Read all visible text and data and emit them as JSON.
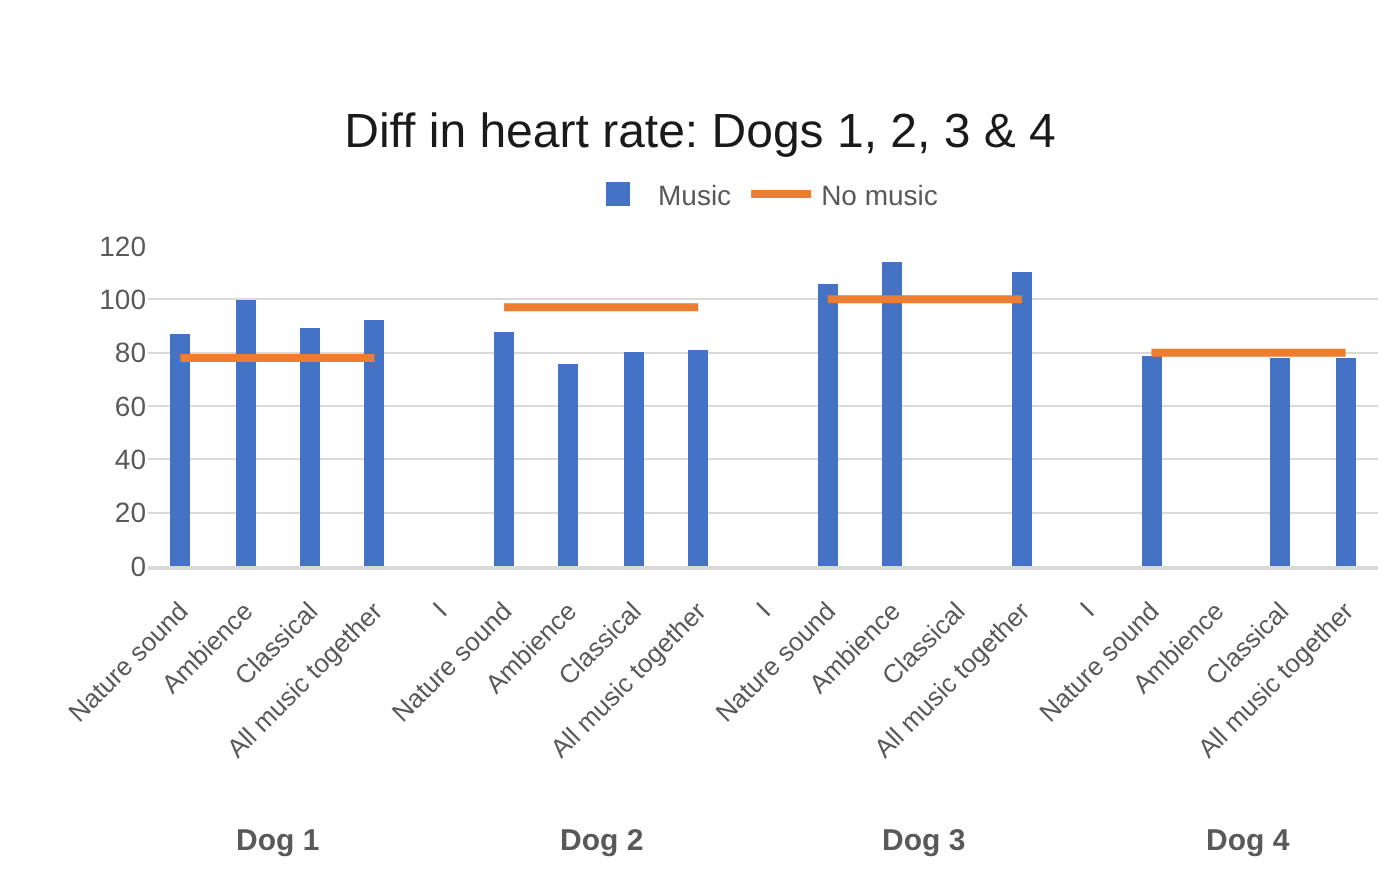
{
  "chart_data": {
    "type": "bar",
    "title": "Diff in heart rate: Dogs 1, 2, 3 & 4",
    "categories": [
      "Nature sound",
      "Ambience",
      "Classical",
      "All music together",
      "I",
      "Nature sound",
      "Ambience",
      "Classical",
      "All music together",
      "I",
      "Nature sound",
      "Ambience",
      "Classical",
      "All music together",
      "I",
      "Nature sound",
      "Ambience",
      "Classical",
      "All music together"
    ],
    "series": [
      {
        "name": "Music",
        "color": "#4472c4",
        "values": [
          87,
          100,
          89,
          92,
          null,
          88,
          76,
          80,
          81,
          null,
          106,
          114,
          null,
          110,
          null,
          79,
          null,
          78,
          78
        ]
      },
      {
        "name": "No music",
        "type": "line",
        "color": "#ed7d31",
        "values": [
          78,
          78,
          78,
          78,
          null,
          97,
          97,
          97,
          97,
          null,
          100,
          100,
          100,
          100,
          null,
          80,
          80,
          80,
          80
        ]
      }
    ],
    "ylim": [
      0,
      120
    ],
    "yticks": [
      0,
      20,
      40,
      60,
      80,
      100,
      120
    ],
    "grid": "y",
    "legend": "top",
    "marker": "none",
    "line_style": "solid",
    "annotations": [
      "Dog 1",
      "Dog 2",
      "Dog 3",
      "Dog 4"
    ]
  }
}
